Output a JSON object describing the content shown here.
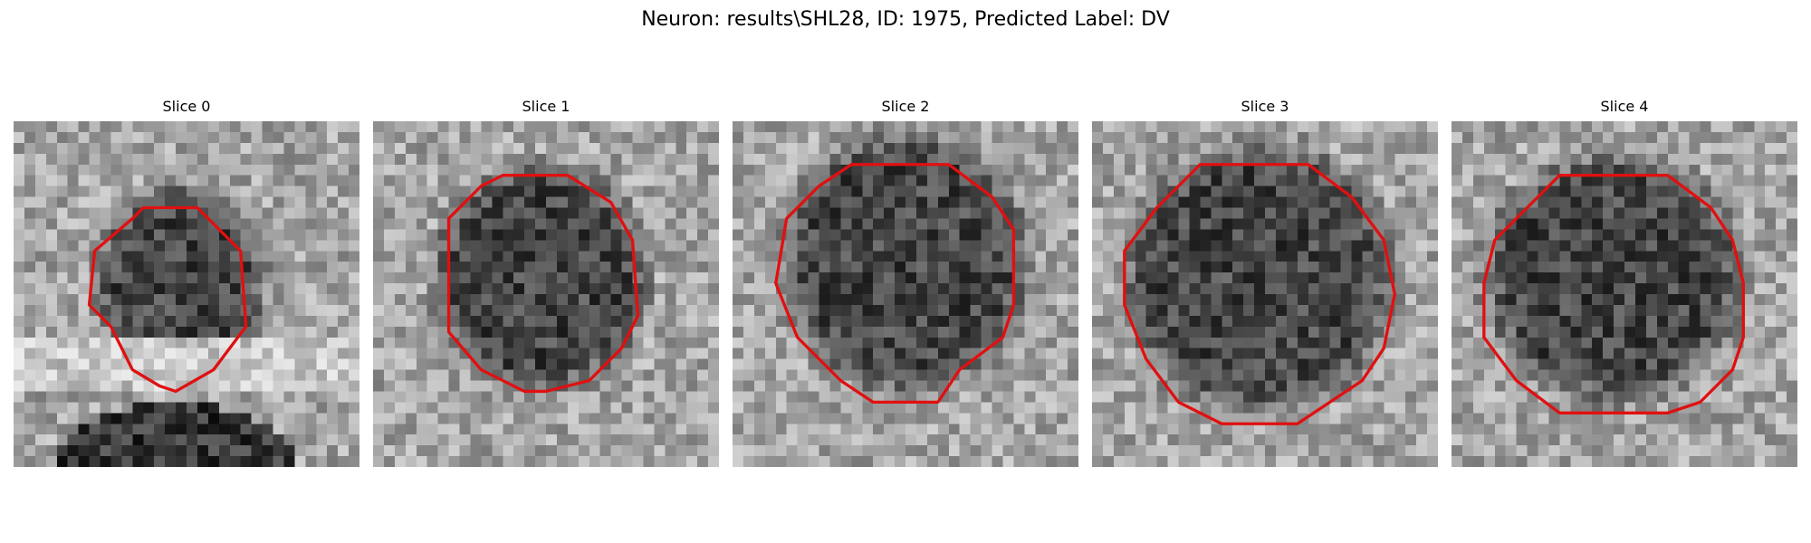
{
  "title": "Neuron: results\\SHL28, ID: 1975, Predicted Label: DV",
  "contour_color": "#e01010",
  "colormap": "gray",
  "slices": [
    {
      "label": "Slice 0",
      "seed": 11,
      "bright_bottom": true
    },
    {
      "label": "Slice 1",
      "seed": 23,
      "bright_bottom": false
    },
    {
      "label": "Slice 2",
      "seed": 37,
      "bright_bottom": false
    },
    {
      "label": "Slice 3",
      "seed": 51,
      "bright_bottom": false
    },
    {
      "label": "Slice 4",
      "seed": 67,
      "bright_bottom": false
    }
  ]
}
